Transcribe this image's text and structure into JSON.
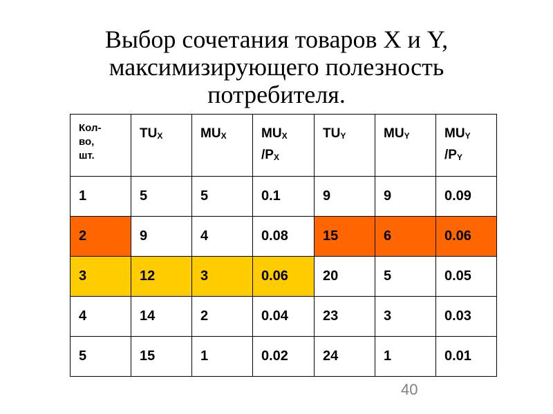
{
  "title": {
    "line1": "Выбор сочетания товаров X и Y,",
    "line2": "максимизирующего полезность",
    "line3": "потребителя."
  },
  "table": {
    "headers": [
      {
        "lines": [
          "Кол-",
          "во,",
          "шт."
        ]
      },
      {
        "main": "TU",
        "sub": "X"
      },
      {
        "main": "MU",
        "sub": "X"
      },
      {
        "main": "MU",
        "sub": "X",
        "line2": "/P",
        "line2_sub": "X"
      },
      {
        "main": "TU",
        "sub": "Y"
      },
      {
        "main": "MU",
        "sub": "Y"
      },
      {
        "main": "MU",
        "sub": "Y",
        "line2": "/P",
        "line2_sub": "Y"
      }
    ],
    "rows": [
      {
        "cells": [
          "1",
          "5",
          "5",
          "0.1",
          "9",
          "9",
          "0.09"
        ],
        "highlight": [
          "none",
          "none",
          "none",
          "none",
          "none",
          "none",
          "none"
        ]
      },
      {
        "cells": [
          "2",
          "9",
          "4",
          "0.08",
          "15",
          "6",
          "0.06"
        ],
        "highlight": [
          "orange",
          "none",
          "none",
          "none",
          "orange",
          "orange",
          "orange"
        ]
      },
      {
        "cells": [
          "3",
          "12",
          "3",
          "0.06",
          "20",
          "5",
          "0.05"
        ],
        "highlight": [
          "yellow",
          "yellow",
          "yellow",
          "yellow",
          "none",
          "none",
          "none"
        ]
      },
      {
        "cells": [
          "4",
          "14",
          "2",
          "0.04",
          "23",
          "3",
          "0.03"
        ],
        "highlight": [
          "none",
          "none",
          "none",
          "none",
          "none",
          "none",
          "none"
        ]
      },
      {
        "cells": [
          "5",
          "15",
          "1",
          "0.02",
          "24",
          "1",
          "0.01"
        ],
        "highlight": [
          "none",
          "none",
          "none",
          "none",
          "none",
          "none",
          "none"
        ]
      }
    ]
  },
  "colors": {
    "orange": "#ff6600",
    "yellow": "#ffcc00"
  },
  "page_number": "40"
}
